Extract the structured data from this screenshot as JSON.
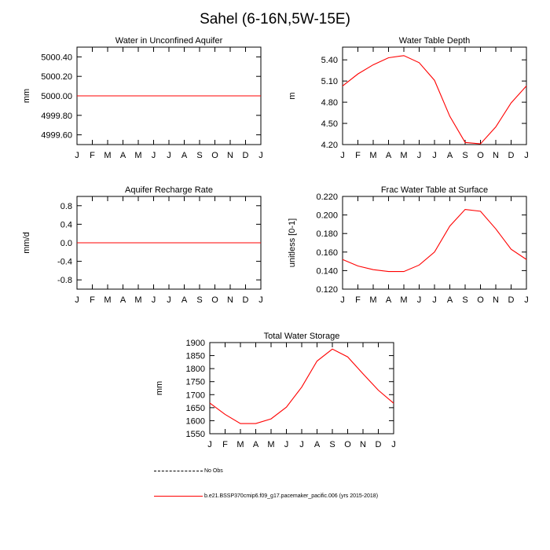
{
  "title": "Sahel (6-16N,5W-15E)",
  "colors": {
    "series": "#ff0000",
    "axis": "#000000"
  },
  "legend": [
    {
      "label": "No Obs",
      "style": "dashed",
      "color": "#000000"
    },
    {
      "label": "b.e21.BSSP370cmip6.f09_g17.pacemaker_pacific.006 (yrs 2015-2018)",
      "style": "solid",
      "color": "#ff0000"
    }
  ],
  "chart_data": [
    {
      "type": "line",
      "title": "Water in Unconfined Aquifer",
      "ylabel": "mm",
      "categories": [
        "J",
        "F",
        "M",
        "A",
        "M",
        "J",
        "J",
        "A",
        "S",
        "O",
        "N",
        "D",
        "J"
      ],
      "ylim": [
        4999.5,
        5000.5
      ],
      "yticks": [
        4999.6,
        4999.8,
        5000.0,
        5000.2,
        5000.4
      ],
      "ytick_labels": [
        "4999.60",
        "4999.80",
        "5000.00",
        "5000.20",
        "5000.40"
      ],
      "series": [
        {
          "name": "b.e21.BSSP370cmip6.f09_g17.pacemaker_pacific.006",
          "values": [
            5000,
            5000,
            5000,
            5000,
            5000,
            5000,
            5000,
            5000,
            5000,
            5000,
            5000,
            5000,
            5000
          ]
        }
      ]
    },
    {
      "type": "line",
      "title": "Water Table Depth",
      "ylabel": "m",
      "categories": [
        "J",
        "F",
        "M",
        "A",
        "M",
        "J",
        "J",
        "A",
        "S",
        "O",
        "N",
        "D",
        "J"
      ],
      "ylim": [
        4.2,
        5.58
      ],
      "yticks": [
        4.2,
        4.5,
        4.8,
        5.1,
        5.4
      ],
      "ytick_labels": [
        "4.20",
        "4.50",
        "4.80",
        "5.10",
        "5.40"
      ],
      "series": [
        {
          "name": "b.e21.BSSP370cmip6.f09_g17.pacemaker_pacific.006",
          "values": [
            5.03,
            5.2,
            5.33,
            5.43,
            5.46,
            5.36,
            5.11,
            4.6,
            4.23,
            4.21,
            4.45,
            4.79,
            5.03
          ]
        }
      ]
    },
    {
      "type": "line",
      "title": "Aquifer Recharge Rate",
      "ylabel": "mm/d",
      "categories": [
        "J",
        "F",
        "M",
        "A",
        "M",
        "J",
        "J",
        "A",
        "S",
        "O",
        "N",
        "D",
        "J"
      ],
      "ylim": [
        -1.0,
        1.0
      ],
      "yticks": [
        -0.8,
        -0.4,
        0.0,
        0.4,
        0.8
      ],
      "ytick_labels": [
        "-0.8",
        "-0.4",
        "0.0",
        "0.4",
        "0.8"
      ],
      "series": [
        {
          "name": "b.e21.BSSP370cmip6.f09_g17.pacemaker_pacific.006",
          "values": [
            0,
            0,
            0,
            0,
            0,
            0,
            0,
            0,
            0,
            0,
            0,
            0,
            0
          ]
        }
      ]
    },
    {
      "type": "line",
      "title": "Frac Water Table at Surface",
      "ylabel": "unitless [0-1]",
      "categories": [
        "J",
        "F",
        "M",
        "A",
        "M",
        "J",
        "J",
        "A",
        "S",
        "O",
        "N",
        "D",
        "J"
      ],
      "ylim": [
        0.12,
        0.22
      ],
      "yticks": [
        0.12,
        0.14,
        0.16,
        0.18,
        0.2,
        0.22
      ],
      "ytick_labels": [
        "0.120",
        "0.140",
        "0.160",
        "0.180",
        "0.200",
        "0.220"
      ],
      "series": [
        {
          "name": "b.e21.BSSP370cmip6.f09_g17.pacemaker_pacific.006",
          "values": [
            0.152,
            0.145,
            0.141,
            0.139,
            0.139,
            0.146,
            0.16,
            0.188,
            0.206,
            0.204,
            0.185,
            0.163,
            0.152
          ]
        }
      ]
    },
    {
      "type": "line",
      "title": "Total Water Storage",
      "ylabel": "mm",
      "categories": [
        "J",
        "F",
        "M",
        "A",
        "M",
        "J",
        "J",
        "A",
        "S",
        "O",
        "N",
        "D",
        "J"
      ],
      "ylim": [
        1550,
        1900
      ],
      "yticks": [
        1550,
        1600,
        1650,
        1700,
        1750,
        1800,
        1850,
        1900
      ],
      "ytick_labels": [
        "1550",
        "1600",
        "1650",
        "1700",
        "1750",
        "1800",
        "1850",
        "1900"
      ],
      "series": [
        {
          "name": "b.e21.BSSP370cmip6.f09_g17.pacemaker_pacific.006",
          "values": [
            1668,
            1624,
            1589,
            1589,
            1607,
            1652,
            1729,
            1829,
            1875,
            1845,
            1780,
            1717,
            1667
          ]
        }
      ]
    }
  ]
}
